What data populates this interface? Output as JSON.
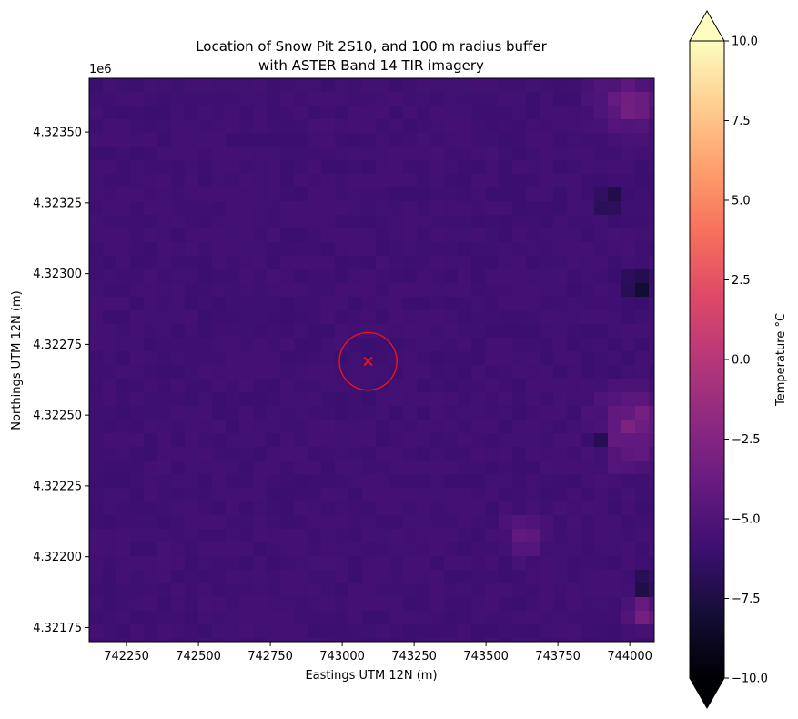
{
  "chart_data": {
    "type": "heatmap",
    "title_lines": [
      "Location of Snow Pit 2S10, and 100 m radius buffer",
      "with ASTER Band 14 TIR imagery"
    ],
    "xlabel": "Eastings UTM 12N (m)",
    "ylabel": "Northings UTM 12N (m)",
    "y_offset_label": "1e6",
    "xlim": [
      742120,
      744085
    ],
    "ylim": [
      4321700,
      4323690
    ],
    "x_ticks": [
      742250,
      742500,
      742750,
      743000,
      743250,
      743500,
      743750,
      744000
    ],
    "x_tick_labels": [
      "742250",
      "742500",
      "742750",
      "743000",
      "743250",
      "743500",
      "743750",
      "744000"
    ],
    "y_ticks": [
      4321750,
      4322000,
      4322250,
      4322500,
      4322750,
      4323000,
      4323250,
      4323500
    ],
    "y_tick_labels": [
      "4.32175",
      "4.32200",
      "4.32225",
      "4.32250",
      "4.32275",
      "4.32300",
      "4.32325",
      "4.32350"
    ],
    "colormap": "magma",
    "color_range": [
      -10.0,
      10.0
    ],
    "colorbar": {
      "label": "Temperature °C",
      "ticks": [
        -10.0,
        -7.5,
        -5.0,
        -2.5,
        0.0,
        2.5,
        5.0,
        7.5,
        10.0
      ],
      "tick_labels": [
        "−10.0",
        "−7.5",
        "−5.0",
        "−2.5",
        "0.0",
        "2.5",
        "5.0",
        "7.5",
        "10.0"
      ],
      "extend": "both"
    },
    "field": {
      "base_temperature": -5.8,
      "warm_patches": [
        {
          "x": 744000,
          "y": 4322450,
          "radius": 120,
          "temperature": -2.5
        },
        {
          "x": 743990,
          "y": 4323600,
          "radius": 110,
          "temperature": -3.5
        },
        {
          "x": 743640,
          "y": 4322070,
          "radius": 70,
          "temperature": -3.8
        },
        {
          "x": 744050,
          "y": 4321800,
          "radius": 60,
          "temperature": -3.0
        }
      ],
      "cold_patches": [
        {
          "x": 744030,
          "y": 4322970,
          "radius": 50,
          "temperature": -8.5
        },
        {
          "x": 743930,
          "y": 4323250,
          "radius": 45,
          "temperature": -8.0
        },
        {
          "x": 743900,
          "y": 4322430,
          "radius": 50,
          "temperature": -8.2
        },
        {
          "x": 744060,
          "y": 4321900,
          "radius": 40,
          "temperature": -8.8
        }
      ]
    },
    "snow_pit": {
      "easting": 743090,
      "northing": 4322690,
      "marker": "x",
      "color": "#e8141c"
    },
    "buffer": {
      "radius_m": 100,
      "color": "#e8141c"
    }
  }
}
